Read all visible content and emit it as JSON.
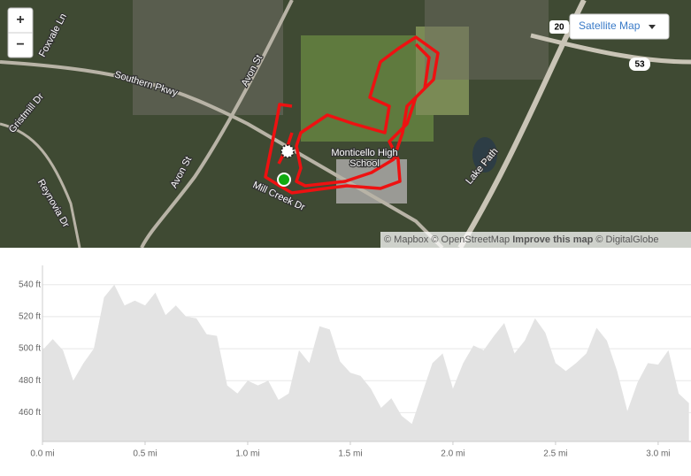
{
  "map": {
    "zoom_in": "+",
    "zoom_out": "−",
    "layer_button": "Satellite Map",
    "labels": [
      "Foxvale Ln",
      "Southern Pkwy",
      "Avon St",
      "Avon St",
      "Gristmill Dr",
      "Reynovia Dr",
      "Mill Creek Dr",
      "Monticello High",
      "School",
      "Lake Path"
    ],
    "shields": [
      "20",
      "53"
    ],
    "attribution": {
      "mapbox": "© Mapbox",
      "osm": "© OpenStreetMap",
      "improve": "Improve this map",
      "globe": "© DigitalGlobe"
    }
  },
  "chart_data": {
    "type": "area",
    "color": "#e3e3e3",
    "grid": true,
    "x": [
      0,
      0.05,
      0.1,
      0.15,
      0.2,
      0.25,
      0.3,
      0.35,
      0.4,
      0.45,
      0.5,
      0.55,
      0.6,
      0.65,
      0.7,
      0.75,
      0.8,
      0.85,
      0.9,
      0.95,
      1.0,
      1.05,
      1.1,
      1.15,
      1.2,
      1.25,
      1.3,
      1.35,
      1.4,
      1.45,
      1.5,
      1.55,
      1.6,
      1.65,
      1.7,
      1.75,
      1.8,
      1.85,
      1.9,
      1.95,
      2.0,
      2.05,
      2.1,
      2.15,
      2.2,
      2.25,
      2.3,
      2.35,
      2.4,
      2.45,
      2.5,
      2.55,
      2.6,
      2.65,
      2.7,
      2.75,
      2.8,
      2.85,
      2.9,
      2.95,
      3.0,
      3.05,
      3.1,
      3.15
    ],
    "values": [
      499,
      506,
      499,
      480,
      491,
      500,
      532,
      540,
      527,
      530,
      527,
      535,
      521,
      527,
      520,
      519,
      509,
      508,
      477,
      472,
      480,
      477,
      480,
      468,
      472,
      499,
      491,
      514,
      512,
      492,
      485,
      483,
      475,
      463,
      469,
      458,
      453,
      472,
      491,
      497,
      475,
      491,
      502,
      499,
      508,
      516,
      497,
      505,
      519,
      510,
      491,
      486,
      491,
      497,
      513,
      505,
      486,
      461,
      479,
      491,
      490,
      499,
      472,
      466
    ],
    "xlim": [
      0,
      3.16
    ],
    "ylim": [
      442,
      552
    ],
    "xticks": [
      {
        "value": 0,
        "label": "0.0 mi"
      },
      {
        "value": 0.5,
        "label": "0.5 mi"
      },
      {
        "value": 1,
        "label": "1.0 mi"
      },
      {
        "value": 1.5,
        "label": "1.5 mi"
      },
      {
        "value": 2,
        "label": "2.0 mi"
      },
      {
        "value": 2.5,
        "label": "2.5 mi"
      },
      {
        "value": 3,
        "label": "3.0 mi"
      }
    ],
    "yticks": [
      {
        "value": 460,
        "label": "460 ft"
      },
      {
        "value": 480,
        "label": "480 ft"
      },
      {
        "value": 500,
        "label": "500 ft"
      },
      {
        "value": 520,
        "label": "520 ft"
      },
      {
        "value": 540,
        "label": "540 ft"
      }
    ]
  }
}
